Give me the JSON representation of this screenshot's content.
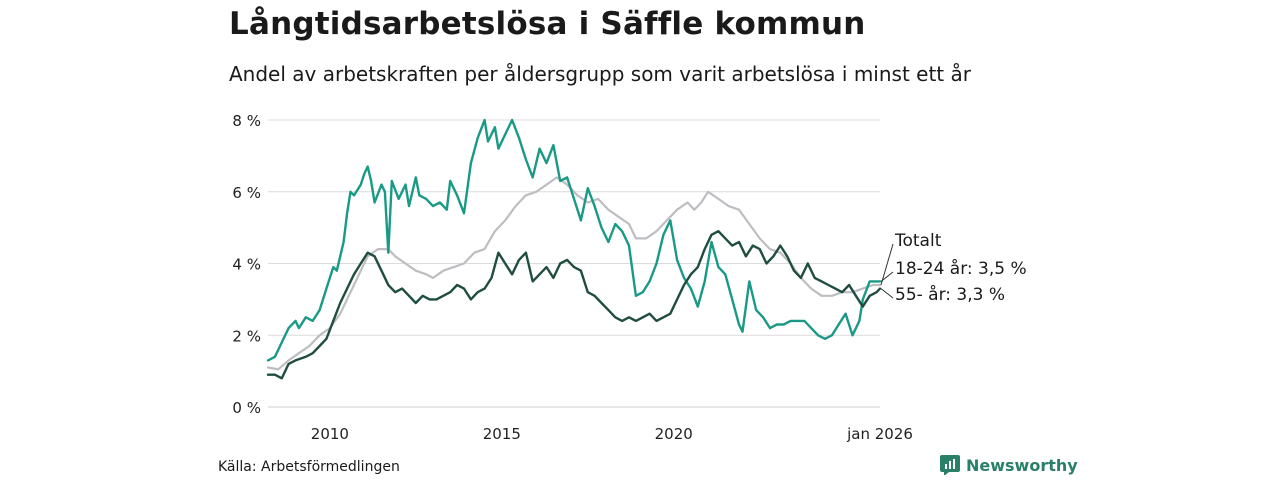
{
  "header": {
    "title": "Långtidsarbetslösa i Säffle kommun",
    "subtitle": "Andel av arbetskraften per åldersgrupp som varit arbetslösa i minst ett år"
  },
  "footer": {
    "source": "Källa: Arbetsförmedlingen",
    "brand": "Newsworthy",
    "brand_icon": "newsworthy-logo-icon"
  },
  "chart_data": {
    "type": "line",
    "title": "Långtidsarbetslösa i Säffle kommun",
    "subtitle": "Andel av arbetskraften per åldersgrupp som varit arbetslösa i minst ett år",
    "xlabel": "",
    "ylabel": "",
    "xlim": [
      2008.2,
      2026.0
    ],
    "ylim": [
      0,
      8
    ],
    "grid": true,
    "y_ticks": [
      {
        "value": 0,
        "label": "0 %"
      },
      {
        "value": 2,
        "label": "2 %"
      },
      {
        "value": 4,
        "label": "4 %"
      },
      {
        "value": 6,
        "label": "6 %"
      },
      {
        "value": 8,
        "label": "8 %"
      }
    ],
    "x_ticks": [
      {
        "value": 2010,
        "label": "2010"
      },
      {
        "value": 2015,
        "label": "2015"
      },
      {
        "value": 2020,
        "label": "2020"
      },
      {
        "value": 2026,
        "label": "jan 2026"
      }
    ],
    "series": [
      {
        "name": "Totalt",
        "label": "Totalt",
        "color": "#bdbdc2",
        "points": [
          [
            2008.2,
            1.1
          ],
          [
            2008.5,
            1.05
          ],
          [
            2008.8,
            1.3
          ],
          [
            2009.1,
            1.5
          ],
          [
            2009.4,
            1.7
          ],
          [
            2009.7,
            2.0
          ],
          [
            2010.0,
            2.2
          ],
          [
            2010.3,
            2.6
          ],
          [
            2010.6,
            3.2
          ],
          [
            2010.9,
            3.8
          ],
          [
            2011.1,
            4.2
          ],
          [
            2011.4,
            4.4
          ],
          [
            2011.7,
            4.4
          ],
          [
            2011.9,
            4.2
          ],
          [
            2012.2,
            4.0
          ],
          [
            2012.5,
            3.8
          ],
          [
            2012.8,
            3.7
          ],
          [
            2013.0,
            3.6
          ],
          [
            2013.3,
            3.8
          ],
          [
            2013.6,
            3.9
          ],
          [
            2013.9,
            4.0
          ],
          [
            2014.2,
            4.3
          ],
          [
            2014.5,
            4.4
          ],
          [
            2014.8,
            4.9
          ],
          [
            2015.1,
            5.2
          ],
          [
            2015.4,
            5.6
          ],
          [
            2015.7,
            5.9
          ],
          [
            2016.0,
            6.0
          ],
          [
            2016.3,
            6.2
          ],
          [
            2016.6,
            6.4
          ],
          [
            2016.9,
            6.2
          ],
          [
            2017.2,
            5.9
          ],
          [
            2017.5,
            5.7
          ],
          [
            2017.8,
            5.8
          ],
          [
            2018.1,
            5.5
          ],
          [
            2018.4,
            5.3
          ],
          [
            2018.7,
            5.1
          ],
          [
            2018.9,
            4.7
          ],
          [
            2019.2,
            4.7
          ],
          [
            2019.5,
            4.9
          ],
          [
            2019.8,
            5.2
          ],
          [
            2020.1,
            5.5
          ],
          [
            2020.4,
            5.7
          ],
          [
            2020.6,
            5.5
          ],
          [
            2020.8,
            5.7
          ],
          [
            2021.0,
            6.0
          ],
          [
            2021.3,
            5.8
          ],
          [
            2021.6,
            5.6
          ],
          [
            2021.9,
            5.5
          ],
          [
            2022.2,
            5.1
          ],
          [
            2022.5,
            4.7
          ],
          [
            2022.8,
            4.4
          ],
          [
            2023.1,
            4.3
          ],
          [
            2023.4,
            4.0
          ],
          [
            2023.7,
            3.6
          ],
          [
            2024.0,
            3.3
          ],
          [
            2024.3,
            3.1
          ],
          [
            2024.6,
            3.1
          ],
          [
            2024.9,
            3.2
          ],
          [
            2025.2,
            3.2
          ],
          [
            2025.5,
            3.3
          ],
          [
            2025.8,
            3.4
          ],
          [
            2026.0,
            3.4
          ]
        ]
      },
      {
        "name": "18-24 år",
        "label": "18-24 år: 3,5 %",
        "color": "#1a9a86",
        "points": [
          [
            2008.2,
            1.3
          ],
          [
            2008.4,
            1.4
          ],
          [
            2008.6,
            1.8
          ],
          [
            2008.8,
            2.2
          ],
          [
            2009.0,
            2.4
          ],
          [
            2009.1,
            2.2
          ],
          [
            2009.3,
            2.5
          ],
          [
            2009.5,
            2.4
          ],
          [
            2009.7,
            2.7
          ],
          [
            2009.9,
            3.3
          ],
          [
            2010.1,
            3.9
          ],
          [
            2010.2,
            3.8
          ],
          [
            2010.4,
            4.6
          ],
          [
            2010.5,
            5.4
          ],
          [
            2010.6,
            6.0
          ],
          [
            2010.7,
            5.9
          ],
          [
            2010.9,
            6.2
          ],
          [
            2011.0,
            6.5
          ],
          [
            2011.1,
            6.7
          ],
          [
            2011.2,
            6.3
          ],
          [
            2011.3,
            5.7
          ],
          [
            2011.5,
            6.2
          ],
          [
            2011.6,
            6.0
          ],
          [
            2011.7,
            4.3
          ],
          [
            2011.8,
            6.3
          ],
          [
            2012.0,
            5.8
          ],
          [
            2012.2,
            6.2
          ],
          [
            2012.3,
            5.6
          ],
          [
            2012.5,
            6.4
          ],
          [
            2012.6,
            5.9
          ],
          [
            2012.8,
            5.8
          ],
          [
            2013.0,
            5.6
          ],
          [
            2013.2,
            5.7
          ],
          [
            2013.4,
            5.5
          ],
          [
            2013.5,
            6.3
          ],
          [
            2013.7,
            5.9
          ],
          [
            2013.9,
            5.4
          ],
          [
            2014.1,
            6.8
          ],
          [
            2014.3,
            7.5
          ],
          [
            2014.5,
            8.0
          ],
          [
            2014.6,
            7.4
          ],
          [
            2014.8,
            7.8
          ],
          [
            2014.9,
            7.2
          ],
          [
            2015.1,
            7.6
          ],
          [
            2015.3,
            8.0
          ],
          [
            2015.5,
            7.5
          ],
          [
            2015.7,
            6.9
          ],
          [
            2015.9,
            6.4
          ],
          [
            2016.1,
            7.2
          ],
          [
            2016.3,
            6.8
          ],
          [
            2016.5,
            7.3
          ],
          [
            2016.7,
            6.3
          ],
          [
            2016.9,
            6.4
          ],
          [
            2017.1,
            5.8
          ],
          [
            2017.3,
            5.2
          ],
          [
            2017.5,
            6.1
          ],
          [
            2017.7,
            5.6
          ],
          [
            2017.9,
            5.0
          ],
          [
            2018.1,
            4.6
          ],
          [
            2018.3,
            5.1
          ],
          [
            2018.5,
            4.9
          ],
          [
            2018.7,
            4.5
          ],
          [
            2018.9,
            3.1
          ],
          [
            2019.1,
            3.2
          ],
          [
            2019.3,
            3.5
          ],
          [
            2019.5,
            4.0
          ],
          [
            2019.7,
            4.8
          ],
          [
            2019.9,
            5.2
          ],
          [
            2020.1,
            4.1
          ],
          [
            2020.3,
            3.6
          ],
          [
            2020.5,
            3.3
          ],
          [
            2020.7,
            2.8
          ],
          [
            2020.9,
            3.5
          ],
          [
            2021.1,
            4.6
          ],
          [
            2021.3,
            3.9
          ],
          [
            2021.5,
            3.7
          ],
          [
            2021.7,
            3.0
          ],
          [
            2021.9,
            2.3
          ],
          [
            2022.0,
            2.1
          ],
          [
            2022.2,
            3.5
          ],
          [
            2022.4,
            2.7
          ],
          [
            2022.6,
            2.5
          ],
          [
            2022.8,
            2.2
          ],
          [
            2023.0,
            2.3
          ],
          [
            2023.2,
            2.3
          ],
          [
            2023.4,
            2.4
          ],
          [
            2023.6,
            2.4
          ],
          [
            2023.8,
            2.4
          ],
          [
            2024.0,
            2.2
          ],
          [
            2024.2,
            2.0
          ],
          [
            2024.4,
            1.9
          ],
          [
            2024.6,
            2.0
          ],
          [
            2024.8,
            2.3
          ],
          [
            2025.0,
            2.6
          ],
          [
            2025.2,
            2.0
          ],
          [
            2025.4,
            2.4
          ],
          [
            2025.5,
            3.0
          ],
          [
            2025.7,
            3.5
          ],
          [
            2025.9,
            3.5
          ],
          [
            2026.0,
            3.5
          ]
        ]
      },
      {
        "name": "55- år",
        "label": "55- år: 3,3 %",
        "color": "#1f4d3f",
        "points": [
          [
            2008.2,
            0.9
          ],
          [
            2008.4,
            0.9
          ],
          [
            2008.6,
            0.8
          ],
          [
            2008.8,
            1.2
          ],
          [
            2009.0,
            1.3
          ],
          [
            2009.3,
            1.4
          ],
          [
            2009.5,
            1.5
          ],
          [
            2009.7,
            1.7
          ],
          [
            2009.9,
            1.9
          ],
          [
            2010.1,
            2.4
          ],
          [
            2010.3,
            2.9
          ],
          [
            2010.5,
            3.3
          ],
          [
            2010.7,
            3.7
          ],
          [
            2010.9,
            4.0
          ],
          [
            2011.1,
            4.3
          ],
          [
            2011.3,
            4.2
          ],
          [
            2011.5,
            3.8
          ],
          [
            2011.7,
            3.4
          ],
          [
            2011.9,
            3.2
          ],
          [
            2012.1,
            3.3
          ],
          [
            2012.3,
            3.1
          ],
          [
            2012.5,
            2.9
          ],
          [
            2012.7,
            3.1
          ],
          [
            2012.9,
            3.0
          ],
          [
            2013.1,
            3.0
          ],
          [
            2013.3,
            3.1
          ],
          [
            2013.5,
            3.2
          ],
          [
            2013.7,
            3.4
          ],
          [
            2013.9,
            3.3
          ],
          [
            2014.1,
            3.0
          ],
          [
            2014.3,
            3.2
          ],
          [
            2014.5,
            3.3
          ],
          [
            2014.7,
            3.6
          ],
          [
            2014.9,
            4.3
          ],
          [
            2015.1,
            4.0
          ],
          [
            2015.3,
            3.7
          ],
          [
            2015.5,
            4.1
          ],
          [
            2015.7,
            4.3
          ],
          [
            2015.9,
            3.5
          ],
          [
            2016.1,
            3.7
          ],
          [
            2016.3,
            3.9
          ],
          [
            2016.5,
            3.6
          ],
          [
            2016.7,
            4.0
          ],
          [
            2016.9,
            4.1
          ],
          [
            2017.1,
            3.9
          ],
          [
            2017.3,
            3.8
          ],
          [
            2017.5,
            3.2
          ],
          [
            2017.7,
            3.1
          ],
          [
            2017.9,
            2.9
          ],
          [
            2018.1,
            2.7
          ],
          [
            2018.3,
            2.5
          ],
          [
            2018.5,
            2.4
          ],
          [
            2018.7,
            2.5
          ],
          [
            2018.9,
            2.4
          ],
          [
            2019.1,
            2.5
          ],
          [
            2019.3,
            2.6
          ],
          [
            2019.5,
            2.4
          ],
          [
            2019.7,
            2.5
          ],
          [
            2019.9,
            2.6
          ],
          [
            2020.1,
            3.0
          ],
          [
            2020.3,
            3.4
          ],
          [
            2020.5,
            3.7
          ],
          [
            2020.7,
            3.9
          ],
          [
            2020.9,
            4.4
          ],
          [
            2021.1,
            4.8
          ],
          [
            2021.3,
            4.9
          ],
          [
            2021.5,
            4.7
          ],
          [
            2021.7,
            4.5
          ],
          [
            2021.9,
            4.6
          ],
          [
            2022.1,
            4.2
          ],
          [
            2022.3,
            4.5
          ],
          [
            2022.5,
            4.4
          ],
          [
            2022.7,
            4.0
          ],
          [
            2022.9,
            4.2
          ],
          [
            2023.1,
            4.5
          ],
          [
            2023.3,
            4.2
          ],
          [
            2023.5,
            3.8
          ],
          [
            2023.7,
            3.6
          ],
          [
            2023.9,
            4.0
          ],
          [
            2024.1,
            3.6
          ],
          [
            2024.3,
            3.5
          ],
          [
            2024.5,
            3.4
          ],
          [
            2024.7,
            3.3
          ],
          [
            2024.9,
            3.2
          ],
          [
            2025.1,
            3.4
          ],
          [
            2025.3,
            3.1
          ],
          [
            2025.5,
            2.8
          ],
          [
            2025.7,
            3.1
          ],
          [
            2025.9,
            3.2
          ],
          [
            2026.0,
            3.3
          ]
        ]
      }
    ]
  }
}
